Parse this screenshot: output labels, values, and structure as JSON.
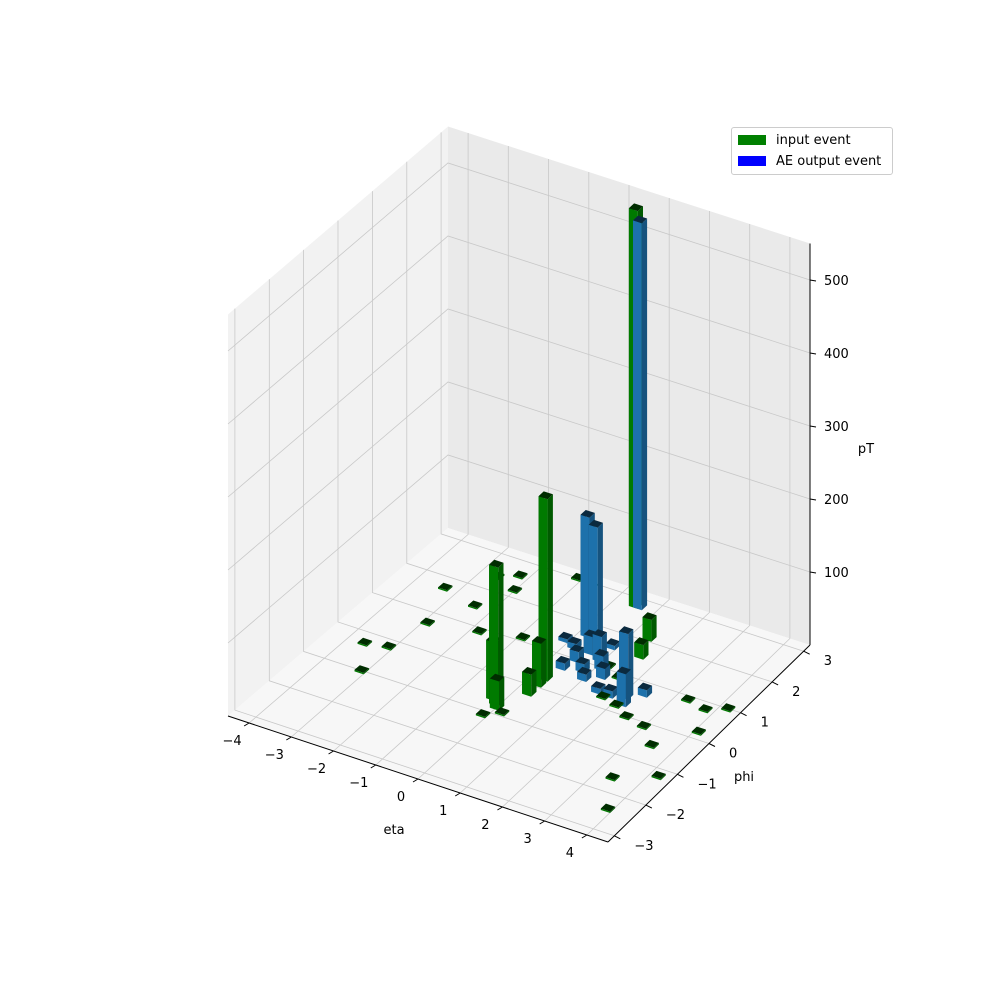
{
  "chart_data": {
    "type": "bar3d",
    "axes": {
      "x": {
        "label": "eta",
        "ticks": [
          -4,
          -3,
          -2,
          -1,
          0,
          1,
          2,
          3,
          4
        ],
        "tick_labels": [
          "−4",
          "−3",
          "−2",
          "−1",
          "0",
          "1",
          "2",
          "3",
          "4"
        ],
        "range": [
          -4.5,
          4.5
        ]
      },
      "y": {
        "label": "phi",
        "ticks": [
          -3,
          -2,
          -1,
          0,
          1,
          2,
          3
        ],
        "tick_labels": [
          "−3",
          "−2",
          "−1",
          "0",
          "1",
          "2",
          "3"
        ],
        "range": [
          -3.2,
          3.2
        ]
      },
      "z": {
        "label": "pT",
        "ticks": [
          100,
          200,
          300,
          400,
          500
        ],
        "tick_labels": [
          "100",
          "200",
          "300",
          "400",
          "500"
        ],
        "range": [
          0,
          550
        ]
      }
    },
    "grid": true,
    "legend_position": "top-right",
    "series": [
      {
        "name": "input event",
        "color": "#008000",
        "bars": [
          {
            "eta": -0.1,
            "phi": -0.7,
            "pT": 190
          },
          {
            "eta": -0.25,
            "phi": -0.6,
            "pT": 80
          },
          {
            "eta": 0.0,
            "phi": -0.8,
            "pT": 40
          },
          {
            "eta": 0.3,
            "phi": 0.3,
            "pT": 250
          },
          {
            "eta": 0.3,
            "phi": 0.1,
            "pT": 60
          },
          {
            "eta": 0.3,
            "phi": -0.2,
            "pT": 30
          },
          {
            "eta": 0.5,
            "phi": 2.8,
            "pT": 545
          },
          {
            "eta": 1.6,
            "phi": 1.6,
            "pT": 20
          },
          {
            "eta": 1.4,
            "phi": 2.1,
            "pT": 30
          },
          {
            "eta": -3.3,
            "phi": 1.7,
            "pT": 2
          },
          {
            "eta": -2.9,
            "phi": 0.7,
            "pT": 2
          },
          {
            "eta": -2.6,
            "phi": 2.4,
            "pT": 2
          },
          {
            "eta": -2.2,
            "phi": 2.6,
            "pT": 2
          },
          {
            "eta": -2.0,
            "phi": 2.2,
            "pT": 2
          },
          {
            "eta": -2.4,
            "phi": 1.5,
            "pT": 2
          },
          {
            "eta": -1.8,
            "phi": 0.9,
            "pT": 2
          },
          {
            "eta": -1.2,
            "phi": 0.6,
            "pT": 2
          },
          {
            "eta": -0.9,
            "phi": 1.1,
            "pT": 2
          },
          {
            "eta": -3.1,
            "phi": -0.2,
            "pT": 2
          },
          {
            "eta": -3.6,
            "phi": -0.3,
            "pT": 2
          },
          {
            "eta": -3.1,
            "phi": -1.0,
            "pT": 2
          },
          {
            "eta": -0.7,
            "phi": 2.9,
            "pT": 2
          },
          {
            "eta": -1.1,
            "phi": 3.0,
            "pT": 2
          },
          {
            "eta": 1.2,
            "phi": 1.1,
            "pT": 2
          },
          {
            "eta": 1.6,
            "phi": 0.9,
            "pT": 2
          },
          {
            "eta": 1.7,
            "phi": 0.3,
            "pT": 2
          },
          {
            "eta": 2.1,
            "phi": 0.2,
            "pT": 2
          },
          {
            "eta": 2.5,
            "phi": 0.0,
            "pT": 2
          },
          {
            "eta": 3.0,
            "phi": -0.1,
            "pT": 2
          },
          {
            "eta": 3.3,
            "phi": 0.9,
            "pT": 2
          },
          {
            "eta": 3.5,
            "phi": -0.5,
            "pT": 2
          },
          {
            "eta": 3.8,
            "phi": 0.8,
            "pT": 2
          },
          {
            "eta": 4.1,
            "phi": 0.2,
            "pT": 2
          },
          {
            "eta": 4.2,
            "phi": -1.2,
            "pT": 2
          },
          {
            "eta": 3.4,
            "phi": -1.6,
            "pT": 2
          },
          {
            "eta": 3.9,
            "phi": -2.4,
            "pT": 2
          },
          {
            "eta": 4.2,
            "phi": 1.0,
            "pT": 2
          },
          {
            "eta": -0.1,
            "phi": -1.1,
            "pT": 2
          },
          {
            "eta": 0.2,
            "phi": -0.9,
            "pT": 2
          }
        ]
      },
      {
        "name": "AE output event",
        "color": "#1f77b4",
        "bars": [
          {
            "eta": 0.6,
            "phi": 2.8,
            "pT": 530
          },
          {
            "eta": 0.2,
            "phi": 1.7,
            "pT": 165
          },
          {
            "eta": 0.4,
            "phi": 1.7,
            "pT": 155
          },
          {
            "eta": 2.1,
            "phi": 0.5,
            "pT": 90
          },
          {
            "eta": 2.2,
            "phi": 0.3,
            "pT": 45
          },
          {
            "eta": 0.6,
            "phi": 1.3,
            "pT": 25
          },
          {
            "eta": 0.9,
            "phi": 1.2,
            "pT": 35
          },
          {
            "eta": 1.1,
            "phi": 1.0,
            "pT": 20
          },
          {
            "eta": 0.5,
            "phi": 1.0,
            "pT": 15
          },
          {
            "eta": 0.8,
            "phi": 0.8,
            "pT": 12
          },
          {
            "eta": 1.3,
            "phi": 0.8,
            "pT": 15
          },
          {
            "eta": 1.0,
            "phi": 0.6,
            "pT": 10
          },
          {
            "eta": 0.4,
            "phi": 0.7,
            "pT": 10
          },
          {
            "eta": 1.5,
            "phi": 0.4,
            "pT": 8
          },
          {
            "eta": 1.8,
            "phi": 0.4,
            "pT": 10
          },
          {
            "eta": 0.2,
            "phi": 1.3,
            "pT": 8
          },
          {
            "eta": -0.1,
            "phi": 1.4,
            "pT": 5
          },
          {
            "eta": 2.4,
            "phi": 0.7,
            "pT": 10
          },
          {
            "eta": 0.9,
            "phi": 1.6,
            "pT": 6
          },
          {
            "eta": -0.4,
            "phi": 1.0,
            "pT": 4
          }
        ]
      }
    ]
  },
  "legend": {
    "items": [
      {
        "label": "input event",
        "color": "#008000"
      },
      {
        "label": "AE output event",
        "color": "#0000ff"
      }
    ]
  }
}
